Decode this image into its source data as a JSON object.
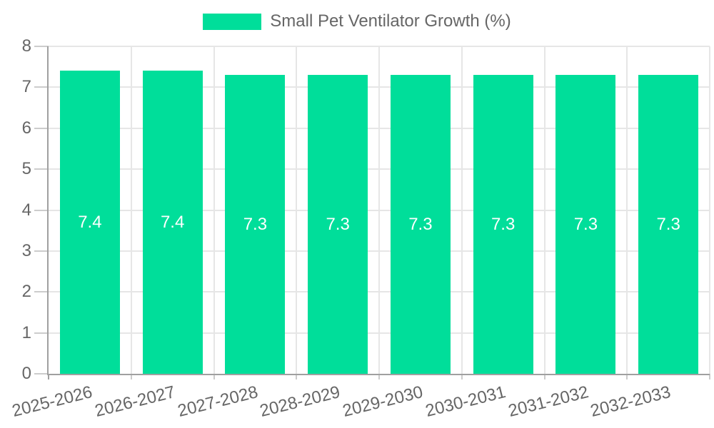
{
  "chart_data": {
    "type": "bar",
    "title": "Small Pet Ventilator Growth (%)",
    "categories": [
      "2025-2026",
      "2026-2027",
      "2027-2028",
      "2028-2029",
      "2029-2030",
      "2030-2031",
      "2031-2032",
      "2032-2033"
    ],
    "values": [
      7.4,
      7.4,
      7.3,
      7.3,
      7.3,
      7.3,
      7.3,
      7.3
    ],
    "value_labels": [
      "7.4",
      "7.4",
      "7.3",
      "7.3",
      "7.3",
      "7.3",
      "7.3",
      "7.3"
    ],
    "xlabel": "",
    "ylabel": "",
    "ylim": [
      0,
      8
    ],
    "y_ticks": [
      0,
      1,
      2,
      3,
      4,
      5,
      6,
      7,
      8
    ],
    "grid": true,
    "legend_position": "top",
    "colors": {
      "bar": "#00de9a",
      "value_label": "#ffffff",
      "text": "#666666",
      "grid": "#e6e6e6",
      "tick": "#cccccc",
      "axis": "#a0a0a0",
      "background": "#ffffff"
    }
  }
}
